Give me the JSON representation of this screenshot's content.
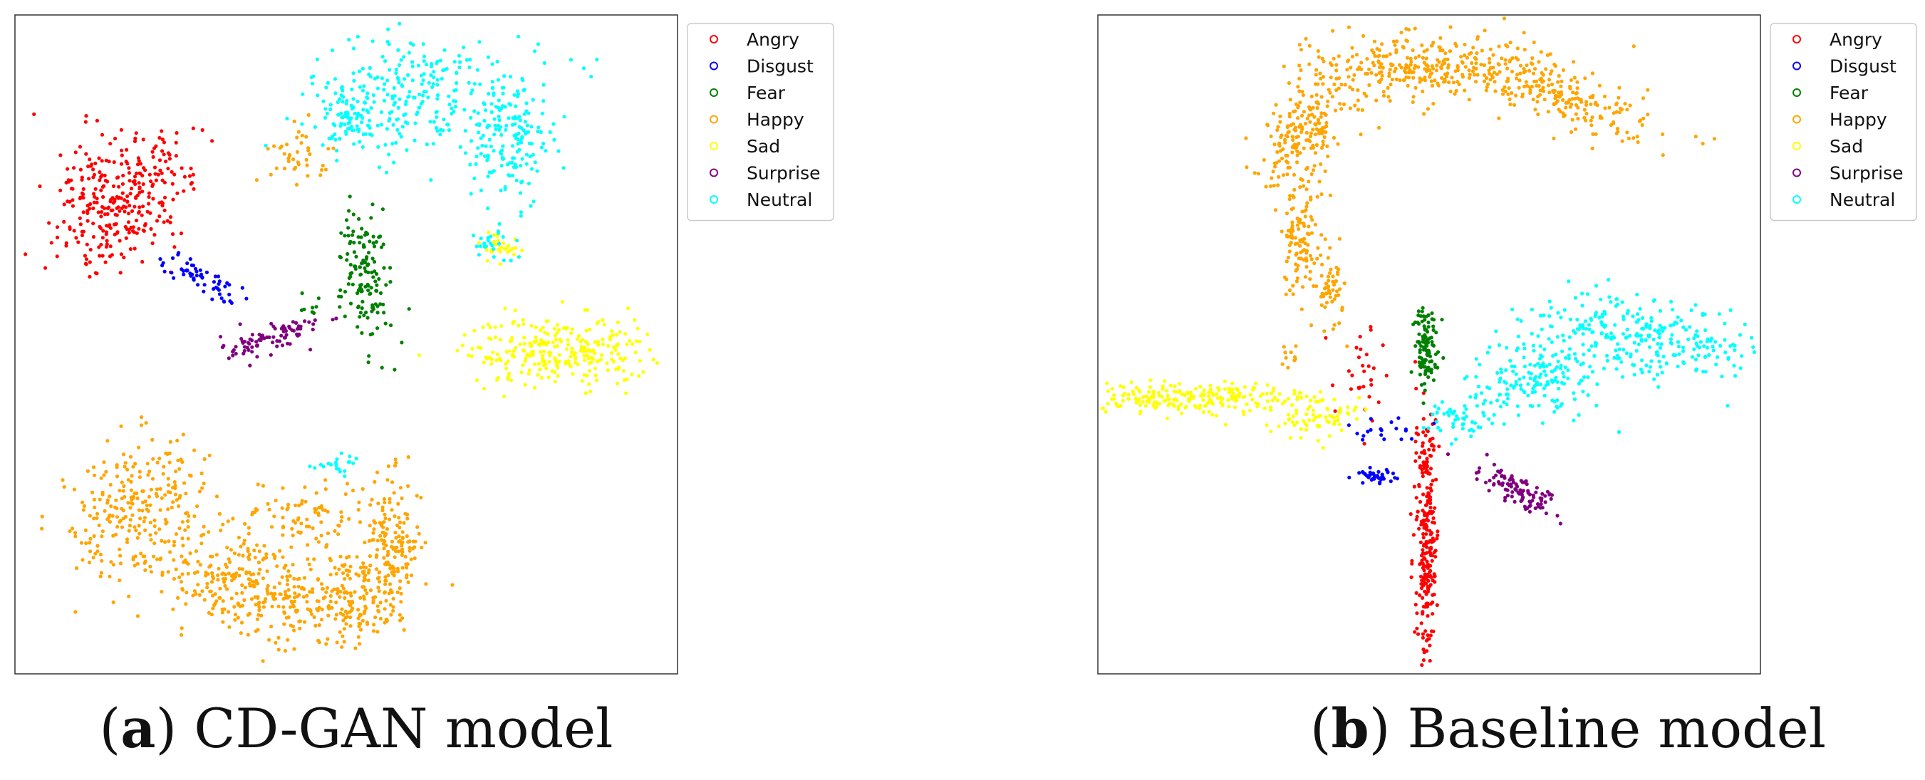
{
  "captions": [
    {
      "letter": "a",
      "text": "CD-GAN model"
    },
    {
      "letter": "b",
      "text": "Baseline model"
    }
  ],
  "chart_data": [
    {
      "type": "scatter",
      "title": "",
      "xlabel": "",
      "ylabel": "",
      "grid": false,
      "axes_ticks": false,
      "legend_position": "outside-top-right",
      "xlim": [
        0,
        100
      ],
      "ylim": [
        0,
        100
      ],
      "series": [
        {
          "name": "Angry",
          "color": "#ff0000",
          "clusters": [
            {
              "cx": 16,
              "cy": 72,
              "sx": 4.5,
              "sy": 6.5,
              "n": 320,
              "rot": -35
            }
          ]
        },
        {
          "name": "Disgust",
          "color": "#0000ff",
          "clusters": [
            {
              "cx": 28,
              "cy": 60,
              "sx": 3.2,
              "sy": 1.0,
              "n": 60,
              "rot": -30
            }
          ]
        },
        {
          "name": "Fear",
          "color": "#008000",
          "clusters": [
            {
              "cx": 53,
              "cy": 60,
              "sx": 2.0,
              "sy": 5.0,
              "n": 140,
              "rot": 10
            },
            {
              "cx": 45,
              "cy": 56,
              "sx": 1.0,
              "sy": 1.0,
              "n": 8,
              "rot": 0
            }
          ]
        },
        {
          "name": "Happy",
          "color": "#ffa500",
          "clusters": [
            {
              "cx": 18,
              "cy": 26,
              "sx": 4,
              "sy": 6,
              "n": 220,
              "rot": -45
            },
            {
              "cx": 33,
              "cy": 14,
              "sx": 8,
              "sy": 4,
              "n": 300,
              "rot": -15
            },
            {
              "cx": 50,
              "cy": 12,
              "sx": 5,
              "sy": 3.5,
              "n": 200,
              "rot": 0
            },
            {
              "cx": 57,
              "cy": 20,
              "sx": 2.2,
              "sy": 5,
              "n": 160,
              "rot": 0
            },
            {
              "cx": 43,
              "cy": 24,
              "sx": 5,
              "sy": 3,
              "n": 80,
              "rot": 0
            },
            {
              "cx": 43,
              "cy": 79,
              "sx": 2.2,
              "sy": 2.2,
              "n": 40,
              "rot": 0
            }
          ]
        },
        {
          "name": "Sad",
          "color": "#ffff00",
          "clusters": [
            {
              "cx": 82,
              "cy": 49,
              "sx": 7,
              "sy": 2.6,
              "n": 280,
              "rot": 0
            },
            {
              "cx": 73,
              "cy": 65,
              "sx": 1.6,
              "sy": 1.2,
              "n": 30,
              "rot": 0
            }
          ]
        },
        {
          "name": "Surprise",
          "color": "#800080",
          "clusters": [
            {
              "cx": 39,
              "cy": 51,
              "sx": 3.8,
              "sy": 1.2,
              "n": 90,
              "rot": 15
            }
          ]
        },
        {
          "name": "Neutral",
          "color": "#00ffff",
          "clusters": [
            {
              "cx": 62,
              "cy": 88,
              "sx": 9,
              "sy": 4.5,
              "n": 260,
              "rot": 0
            },
            {
              "cx": 75,
              "cy": 81,
              "sx": 3,
              "sy": 5,
              "n": 140,
              "rot": 0
            },
            {
              "cx": 51,
              "cy": 84,
              "sx": 3.5,
              "sy": 2.5,
              "n": 80,
              "rot": 0
            },
            {
              "cx": 72,
              "cy": 65,
              "sx": 1.6,
              "sy": 1.3,
              "n": 25,
              "rot": 0
            },
            {
              "cx": 49,
              "cy": 32,
              "sx": 2,
              "sy": 0.8,
              "n": 20,
              "rot": 0
            }
          ]
        }
      ]
    },
    {
      "type": "scatter",
      "title": "",
      "xlabel": "",
      "ylabel": "",
      "grid": false,
      "axes_ticks": false,
      "legend_position": "outside-top-right",
      "xlim": [
        0,
        100
      ],
      "ylim": [
        0,
        100
      ],
      "series": [
        {
          "name": "Angry",
          "color": "#ff0000",
          "clusters": [
            {
              "cx": 49.5,
              "cy": 22,
              "sx": 0.8,
              "sy": 9,
              "n": 260,
              "rot": 0
            },
            {
              "cx": 40,
              "cy": 46,
              "sx": 1.8,
              "sy": 4,
              "n": 30,
              "rot": 0
            }
          ]
        },
        {
          "name": "Disgust",
          "color": "#0000ff",
          "clusters": [
            {
              "cx": 42.5,
              "cy": 30,
              "sx": 1.6,
              "sy": 0.6,
              "n": 40,
              "rot": 0
            },
            {
              "cx": 44,
              "cy": 37,
              "sx": 2.2,
              "sy": 1,
              "n": 20,
              "rot": 0
            }
          ]
        },
        {
          "name": "Fear",
          "color": "#008000",
          "clusters": [
            {
              "cx": 49.5,
              "cy": 50,
              "sx": 0.9,
              "sy": 3.5,
              "n": 110,
              "rot": 0
            }
          ]
        },
        {
          "name": "Happy",
          "color": "#ffa500",
          "clusters": [
            {
              "cx": 31,
              "cy": 82,
              "sx": 3,
              "sy": 5,
              "n": 200,
              "rot": -30
            },
            {
              "cx": 31,
              "cy": 66,
              "sx": 1.4,
              "sy": 4,
              "n": 110,
              "rot": 0
            },
            {
              "cx": 49,
              "cy": 92,
              "sx": 8,
              "sy": 2.5,
              "n": 300,
              "rot": 0
            },
            {
              "cx": 70,
              "cy": 88,
              "sx": 7,
              "sy": 2.2,
              "n": 200,
              "rot": -25
            },
            {
              "cx": 35,
              "cy": 58,
              "sx": 1.2,
              "sy": 3,
              "n": 50,
              "rot": 0
            },
            {
              "cx": 29,
              "cy": 48,
              "sx": 0.8,
              "sy": 0.8,
              "n": 10,
              "rot": 0
            }
          ]
        },
        {
          "name": "Sad",
          "color": "#ffff00",
          "clusters": [
            {
              "cx": 14,
              "cy": 42,
              "sx": 8,
              "sy": 1.2,
              "n": 220,
              "rot": 0
            },
            {
              "cx": 33,
              "cy": 39,
              "sx": 4,
              "sy": 2,
              "n": 80,
              "rot": 0
            }
          ]
        },
        {
          "name": "Surprise",
          "color": "#800080",
          "clusters": [
            {
              "cx": 63,
              "cy": 28,
              "sx": 3.2,
              "sy": 1.1,
              "n": 100,
              "rot": -30
            }
          ]
        },
        {
          "name": "Neutral",
          "color": "#00ffff",
          "clusters": [
            {
              "cx": 82,
              "cy": 51,
              "sx": 8,
              "sy": 2.8,
              "n": 280,
              "rot": -8
            },
            {
              "cx": 66,
              "cy": 45,
              "sx": 5,
              "sy": 3.2,
              "n": 150,
              "rot": -10
            },
            {
              "cx": 55,
              "cy": 39,
              "sx": 3,
              "sy": 2,
              "n": 60,
              "rot": 0
            }
          ]
        }
      ]
    }
  ]
}
